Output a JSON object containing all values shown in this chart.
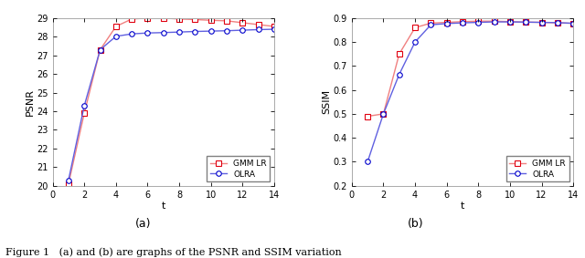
{
  "t": [
    1,
    2,
    3,
    4,
    5,
    6,
    7,
    8,
    9,
    10,
    11,
    12,
    13,
    14
  ],
  "psnr_gmmlr": [
    20.1,
    23.9,
    27.3,
    28.55,
    28.95,
    29.0,
    29.0,
    28.95,
    28.92,
    28.88,
    28.85,
    28.75,
    28.65,
    28.55
  ],
  "psnr_olra": [
    20.3,
    24.3,
    27.3,
    28.02,
    28.15,
    28.2,
    28.22,
    28.25,
    28.28,
    28.3,
    28.32,
    28.35,
    28.38,
    28.4
  ],
  "ssim_gmmlr": [
    0.49,
    0.5,
    0.75,
    0.86,
    0.879,
    0.882,
    0.885,
    0.887,
    0.887,
    0.885,
    0.883,
    0.882,
    0.88,
    0.878
  ],
  "ssim_olra": [
    0.3,
    0.5,
    0.665,
    0.8,
    0.872,
    0.877,
    0.88,
    0.882,
    0.884,
    0.884,
    0.883,
    0.882,
    0.881,
    0.878
  ],
  "color_red": "#f08080",
  "color_red_marker": "#e00010",
  "color_blue": "#6060e0",
  "color_blue_marker": "#0000cc",
  "xlabel": "t",
  "ylabel_left": "PSNR",
  "ylabel_right": "SSIM",
  "xlim": [
    0,
    14
  ],
  "ylim_psnr": [
    20,
    29
  ],
  "ylim_ssim": [
    0.2,
    0.9
  ],
  "yticks_psnr": [
    20,
    21,
    22,
    23,
    24,
    25,
    26,
    27,
    28,
    29
  ],
  "yticks_ssim": [
    0.2,
    0.3,
    0.4,
    0.5,
    0.6,
    0.7,
    0.8,
    0.9
  ],
  "xticks": [
    0,
    2,
    4,
    6,
    8,
    10,
    12,
    14
  ],
  "legend_labels": [
    "GMM LR",
    "OLRA"
  ],
  "label_a": "(a)",
  "label_b": "(b)",
  "caption": "Figure 1   (a) and (b) are graphs of the PSNR and SSIM variation",
  "marker_size": 4,
  "linewidth": 1.0,
  "bg_color": "#ffffff"
}
